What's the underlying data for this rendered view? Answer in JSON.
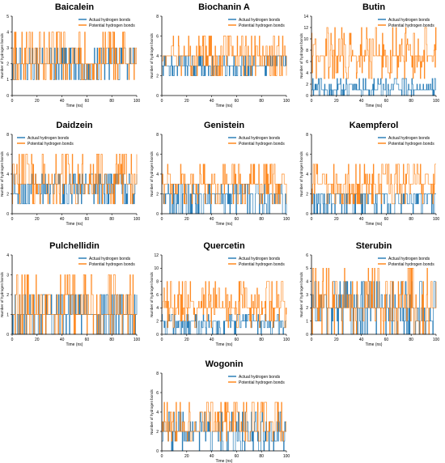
{
  "colors": {
    "actual": "#1f77b4",
    "potential": "#ff7f0e",
    "axis": "#000000"
  },
  "chart_data": [
    {
      "type": "line",
      "title": "Baicalein",
      "xlabel": "Time (ns)",
      "ylabel": "Number of hydrogen bonds",
      "xlim": [
        0,
        100
      ],
      "ylim": [
        0,
        5
      ],
      "xticks": [
        "0",
        "20",
        "40",
        "60",
        "80",
        "100"
      ],
      "yticks": [
        "0",
        "1",
        "2",
        "3",
        "4",
        "5"
      ],
      "legend_position": "top-right",
      "series": [
        {
          "name": "Actual hydrogen bonds",
          "levels": [
            1,
            2,
            3
          ],
          "typical": 2
        },
        {
          "name": "Potential hydrogen bonds",
          "levels": [
            1,
            2,
            3,
            4
          ],
          "typical": 2
        }
      ]
    },
    {
      "type": "line",
      "title": "Biochanin A",
      "xlabel": "Time (ns)",
      "ylabel": "Number of hydrogen bonds",
      "xlim": [
        0,
        100
      ],
      "ylim": [
        0,
        8
      ],
      "xticks": [
        "0",
        "20",
        "40",
        "60",
        "80",
        "100"
      ],
      "yticks": [
        "0",
        "2",
        "4",
        "6",
        "8"
      ],
      "legend_position": "top-right",
      "series": [
        {
          "name": "Actual hydrogen bonds",
          "levels": [
            2,
            3,
            4
          ],
          "typical": 3
        },
        {
          "name": "Potential hydrogen bonds",
          "levels": [
            2,
            3,
            4,
            5,
            6
          ],
          "typical": 3.5
        }
      ]
    },
    {
      "type": "line",
      "title": "Butin",
      "xlabel": "Time (ns)",
      "ylabel": "Number of hydrogen bonds",
      "xlim": [
        0,
        100
      ],
      "ylim": [
        0,
        14
      ],
      "xticks": [
        "0",
        "20",
        "40",
        "60",
        "80",
        "100"
      ],
      "yticks": [
        "0",
        "2",
        "4",
        "6",
        "8",
        "10",
        "12",
        "14"
      ],
      "legend_position": "top-right",
      "series": [
        {
          "name": "Actual hydrogen bonds",
          "levels": [
            0,
            1,
            2,
            3
          ],
          "typical": 1
        },
        {
          "name": "Potential hydrogen bonds",
          "levels": [
            3,
            4,
            5,
            6,
            7,
            8,
            9,
            10,
            11,
            12
          ],
          "typical": 6.5
        }
      ]
    },
    {
      "type": "line",
      "title": "Daidzein",
      "xlabel": "Time (ns)",
      "ylabel": "Number of hydrogen bonds",
      "xlim": [
        0,
        100
      ],
      "ylim": [
        0,
        8
      ],
      "xticks": [
        "0",
        "20",
        "40",
        "60",
        "80",
        "100"
      ],
      "yticks": [
        "0",
        "2",
        "4",
        "6",
        "8"
      ],
      "legend_position": "top-left",
      "series": [
        {
          "name": "Actual hydrogen bonds",
          "levels": [
            1,
            2,
            3,
            4
          ],
          "typical": 2.5
        },
        {
          "name": "Potential hydrogen bonds",
          "levels": [
            1,
            2,
            3,
            4,
            5,
            6
          ],
          "typical": 3
        }
      ]
    },
    {
      "type": "line",
      "title": "Genistein",
      "xlabel": "Time (ns)",
      "ylabel": "Number of hydrogen bonds",
      "xlim": [
        0,
        100
      ],
      "ylim": [
        0,
        8
      ],
      "xticks": [
        "0",
        "20",
        "40",
        "60",
        "80",
        "100"
      ],
      "yticks": [
        "0",
        "2",
        "4",
        "6",
        "8"
      ],
      "legend_position": "top-right",
      "series": [
        {
          "name": "Actual hydrogen bonds",
          "levels": [
            0,
            1,
            2,
            3
          ],
          "typical": 1.5
        },
        {
          "name": "Potential hydrogen bonds",
          "levels": [
            1,
            2,
            3,
            4,
            5
          ],
          "typical": 2.5
        }
      ]
    },
    {
      "type": "line",
      "title": "Kaempferol",
      "xlabel": "Time (ns)",
      "ylabel": "Number of hydrogen bonds",
      "xlim": [
        0,
        100
      ],
      "ylim": [
        0,
        8
      ],
      "xticks": [
        "0",
        "20",
        "40",
        "60",
        "80",
        "100"
      ],
      "yticks": [
        "0",
        "2",
        "4",
        "6",
        "8"
      ],
      "legend_position": "top-right",
      "series": [
        {
          "name": "Actual hydrogen bonds",
          "levels": [
            0,
            1,
            2
          ],
          "typical": 1.5
        },
        {
          "name": "Potential hydrogen bonds",
          "levels": [
            1,
            2,
            3,
            4,
            5
          ],
          "typical": 2.5
        }
      ]
    },
    {
      "type": "line",
      "title": "Pulchellidin",
      "xlabel": "Time (ns)",
      "ylabel": "Number of hydrogen bonds",
      "xlim": [
        0,
        100
      ],
      "ylim": [
        0,
        4
      ],
      "xticks": [
        "0",
        "20",
        "40",
        "60",
        "80",
        "100"
      ],
      "yticks": [
        "0",
        "1",
        "2",
        "3",
        "4"
      ],
      "legend_position": "top-right",
      "series": [
        {
          "name": "Actual hydrogen bonds",
          "levels": [
            0,
            1,
            2
          ],
          "typical": 1
        },
        {
          "name": "Potential hydrogen bonds",
          "levels": [
            0,
            1,
            2,
            3
          ],
          "typical": 1
        }
      ]
    },
    {
      "type": "line",
      "title": "Quercetin",
      "xlabel": "Time (ns)",
      "ylabel": "Number of hydrogen bonds",
      "xlim": [
        0,
        100
      ],
      "ylim": [
        0,
        12
      ],
      "xticks": [
        "0",
        "20",
        "40",
        "60",
        "80",
        "100"
      ],
      "yticks": [
        "0",
        "2",
        "4",
        "6",
        "8",
        "10",
        "12"
      ],
      "legend_position": "top-right",
      "series": [
        {
          "name": "Actual hydrogen bonds",
          "levels": [
            0,
            1,
            2,
            3
          ],
          "typical": 1.5
        },
        {
          "name": "Potential hydrogen bonds",
          "levels": [
            1,
            2,
            3,
            4,
            5,
            6,
            7,
            8
          ],
          "typical": 3.5
        }
      ]
    },
    {
      "type": "line",
      "title": "Sterubin",
      "xlabel": "Time (ns)",
      "ylabel": "Number of hydrogen bonds",
      "xlim": [
        0,
        100
      ],
      "ylim": [
        0,
        6
      ],
      "xticks": [
        "0",
        "20",
        "40",
        "60",
        "80",
        "100"
      ],
      "yticks": [
        "0",
        "1",
        "2",
        "3",
        "4",
        "5",
        "6"
      ],
      "legend_position": "top-right",
      "series": [
        {
          "name": "Actual hydrogen bonds",
          "levels": [
            0,
            1,
            2,
            3,
            4
          ],
          "typical": 1.5
        },
        {
          "name": "Potential hydrogen bonds",
          "levels": [
            0,
            1,
            2,
            3,
            4,
            5
          ],
          "typical": 2
        }
      ]
    },
    {
      "type": "line",
      "title": "Wogonin",
      "xlabel": "Time (ns)",
      "ylabel": "Number of hydrogen bonds",
      "xlim": [
        0,
        100
      ],
      "ylim": [
        0,
        8
      ],
      "xticks": [
        "0",
        "20",
        "40",
        "60",
        "80",
        "100"
      ],
      "yticks": [
        "0",
        "2",
        "4",
        "6",
        "8"
      ],
      "legend_position": "top-right",
      "series": [
        {
          "name": "Actual hydrogen bonds",
          "levels": [
            0,
            1,
            2,
            3,
            4
          ],
          "typical": 1.5
        },
        {
          "name": "Potential hydrogen bonds",
          "levels": [
            1,
            2,
            3,
            4,
            5
          ],
          "typical": 2
        }
      ]
    }
  ]
}
